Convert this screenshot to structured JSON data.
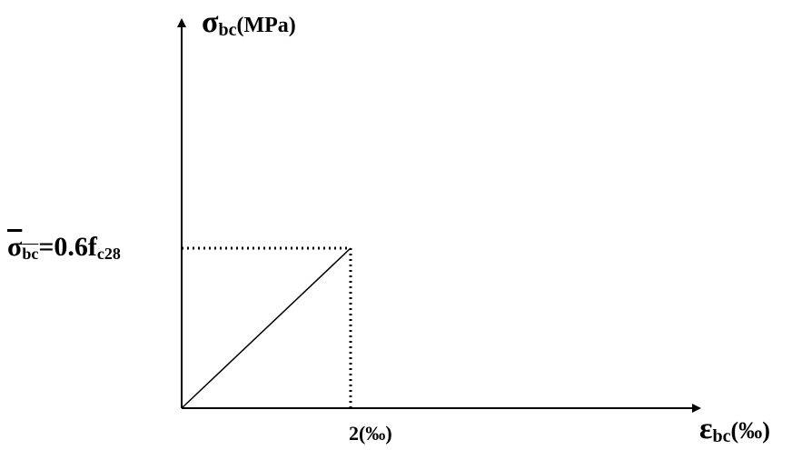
{
  "y_axis": {
    "symbol": "σ",
    "subscript": "bc",
    "unit": "(MPa)"
  },
  "x_axis": {
    "symbol": "ε",
    "subscript": "bc",
    "unit": "(‰)"
  },
  "stress_limit": {
    "symbol": "σ",
    "subscript": "bc",
    "expression": "=0.6f",
    "expression_subscript": "c28"
  },
  "x_tick": {
    "label": "2(‰)"
  },
  "colors": {
    "line": "#000000",
    "background": "#ffffff"
  }
}
